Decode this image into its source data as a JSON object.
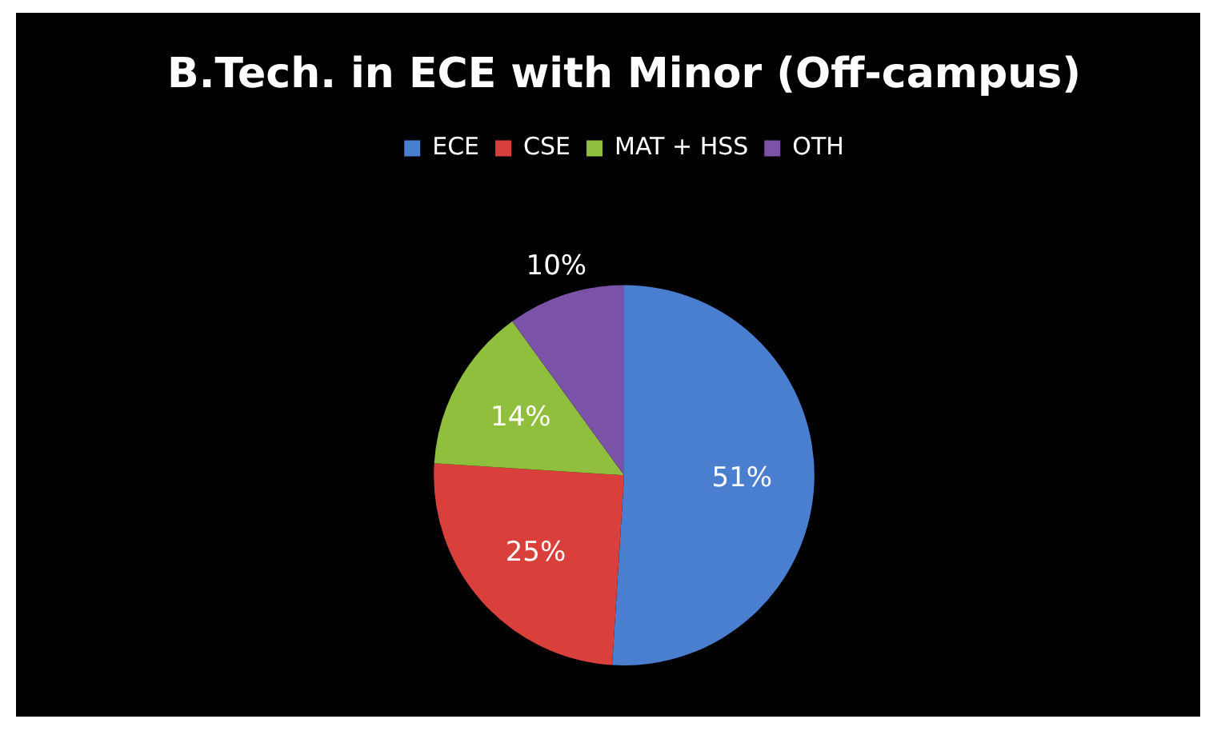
{
  "chart_data": {
    "type": "pie",
    "title": "B.Tech. in ECE with Minor (Off-campus)",
    "categories": [
      "ECE",
      "CSE",
      "MAT + HSS",
      "OTH"
    ],
    "values": [
      51,
      25,
      14,
      10
    ],
    "colors": [
      "#4a7fd0",
      "#d9403c",
      "#8fbf3c",
      "#7a52a8"
    ],
    "legend": "top",
    "value_labels": [
      "51%",
      "25%",
      "14%",
      "10%"
    ]
  }
}
